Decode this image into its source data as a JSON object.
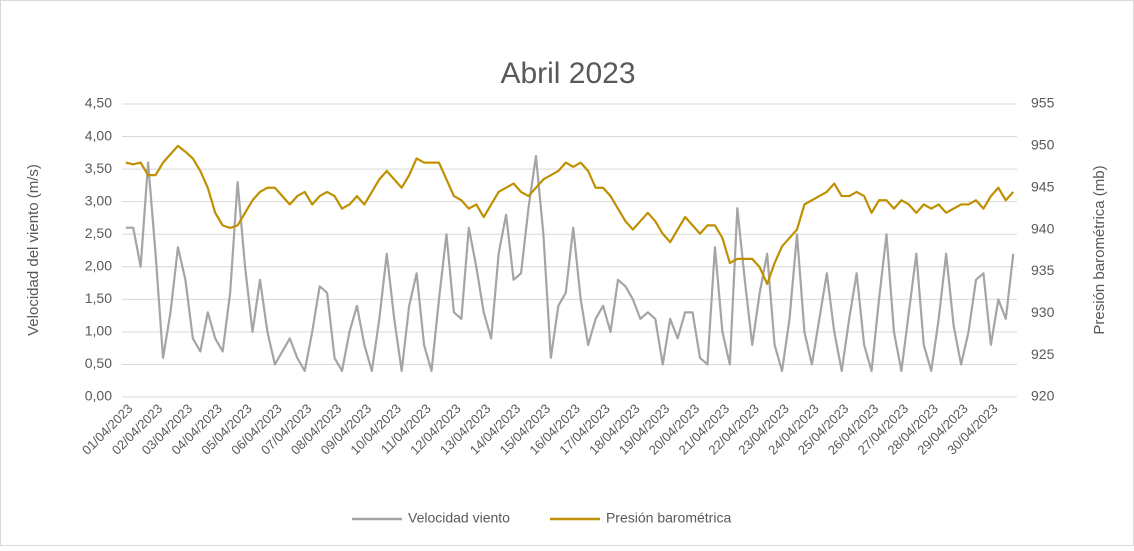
{
  "chart_data": {
    "type": "line",
    "title": "Abril 2023",
    "y_label": "Velocidad del viento (m/s)",
    "y2_label": "Presión barométrica (mb)",
    "categories": [
      "01/04/2023",
      null,
      null,
      null,
      "02/04/2023",
      null,
      null,
      null,
      "03/04/2023",
      null,
      null,
      null,
      "04/04/2023",
      null,
      null,
      null,
      "05/04/2023",
      null,
      null,
      null,
      "06/04/2023",
      null,
      null,
      null,
      "07/04/2023",
      null,
      null,
      null,
      "08/04/2023",
      null,
      null,
      null,
      "09/04/2023",
      null,
      null,
      null,
      "10/04/2023",
      null,
      null,
      null,
      "11/04/2023",
      null,
      null,
      null,
      "12/04/2023",
      null,
      null,
      null,
      "13/04/2023",
      null,
      null,
      null,
      "14/04/2023",
      null,
      null,
      null,
      "15/04/2023",
      null,
      null,
      null,
      "16/04/2023",
      null,
      null,
      null,
      "17/04/2023",
      null,
      null,
      null,
      "18/04/2023",
      null,
      null,
      null,
      "19/04/2023",
      null,
      null,
      null,
      "20/04/2023",
      null,
      null,
      null,
      "21/04/2023",
      null,
      null,
      null,
      "22/04/2023",
      null,
      null,
      null,
      "23/04/2023",
      null,
      null,
      null,
      "24/04/2023",
      null,
      null,
      null,
      "25/04/2023",
      null,
      null,
      null,
      "26/04/2023",
      null,
      null,
      null,
      "27/04/2023",
      null,
      null,
      null,
      "28/04/2023",
      null,
      null,
      null,
      "29/04/2023",
      null,
      null,
      null,
      "30/04/2023",
      null,
      null,
      null
    ],
    "series": [
      {
        "name": "Velocidad viento",
        "color": "#a5a5a5",
        "values": [
          2.6,
          2.6,
          2.0,
          3.6,
          2.2,
          0.6,
          1.3,
          2.3,
          1.8,
          0.9,
          0.7,
          1.3,
          0.9,
          0.7,
          1.6,
          3.3,
          2.0,
          1.0,
          1.8,
          1.0,
          0.5,
          0.7,
          0.9,
          0.6,
          0.4,
          1.0,
          1.7,
          1.6,
          0.6,
          0.4,
          1.0,
          1.4,
          0.8,
          0.4,
          1.2,
          2.2,
          1.2,
          0.4,
          1.4,
          1.9,
          0.8,
          0.4,
          1.5,
          2.5,
          1.3,
          1.2,
          2.6,
          2.0,
          1.3,
          0.9,
          2.2,
          2.8,
          1.8,
          1.9,
          2.9,
          3.7,
          2.5,
          0.6,
          1.4,
          1.6,
          2.6,
          1.5,
          0.8,
          1.2,
          1.4,
          1.0,
          1.8,
          1.7,
          1.5,
          1.2,
          1.3,
          1.2,
          0.5,
          1.2,
          0.9,
          1.3,
          1.3,
          0.6,
          0.5,
          2.3,
          1.0,
          0.5,
          2.9,
          1.8,
          0.8,
          1.6,
          2.2,
          0.8,
          0.4,
          1.2,
          2.5,
          1.0,
          0.5,
          1.2,
          1.9,
          1.0,
          0.4,
          1.2,
          1.9,
          0.8,
          0.4,
          1.5,
          2.5,
          1.0,
          0.4,
          1.3,
          2.2,
          0.8,
          0.4,
          1.2,
          2.2,
          1.1,
          0.5,
          1.0,
          1.8,
          1.9,
          0.8,
          1.5,
          1.2,
          2.2
        ]
      },
      {
        "name": "Presión barométrica",
        "color": "#bf9000",
        "axis": "y2",
        "values": [
          948,
          947.8,
          948,
          946.5,
          946.5,
          948,
          949,
          950,
          949.3,
          948.5,
          947,
          945,
          942,
          940.5,
          940.2,
          940.5,
          942,
          943.5,
          944.5,
          945,
          945,
          944,
          943,
          944,
          944.5,
          943,
          944,
          944.5,
          944,
          942.5,
          943,
          944,
          943,
          944.5,
          946,
          947,
          946,
          945,
          946.5,
          948.5,
          948,
          948,
          948,
          946,
          944,
          943.5,
          942.5,
          943,
          941.5,
          943,
          944.5,
          945,
          945.5,
          944.5,
          944,
          945,
          946,
          946.5,
          947,
          948,
          947.5,
          948,
          947,
          945,
          945,
          944,
          942.5,
          941,
          940,
          941,
          942,
          941,
          939.5,
          938.5,
          940,
          941.5,
          940.5,
          939.5,
          940.5,
          940.5,
          939,
          936,
          936.5,
          936.5,
          936.5,
          935.5,
          933.5,
          936,
          938,
          939,
          940,
          943,
          943.5,
          944,
          944.5,
          945.5,
          944,
          944,
          944.5,
          944,
          942,
          943.5,
          943.5,
          942.5,
          943.5,
          943,
          942,
          943,
          942.5,
          943,
          942,
          942.5,
          943,
          943,
          943.5,
          942.5,
          944,
          945,
          943.5,
          944.5
        ]
      }
    ],
    "ylim": [
      0,
      4.5
    ],
    "yticks": [
      {
        "value": 0,
        "label": "0,00"
      },
      {
        "value": 0.5,
        "label": "0,50"
      },
      {
        "value": 1,
        "label": "1,00"
      },
      {
        "value": 1.5,
        "label": "1,50"
      },
      {
        "value": 2,
        "label": "2,00"
      },
      {
        "value": 2.5,
        "label": "2,50"
      },
      {
        "value": 3,
        "label": "3,00"
      },
      {
        "value": 3.5,
        "label": "3,50"
      },
      {
        "value": 4,
        "label": "4,00"
      },
      {
        "value": 4.5,
        "label": "4,50"
      }
    ],
    "y2lim": [
      920,
      955
    ],
    "y2ticks": [
      920,
      925,
      930,
      935,
      940,
      945,
      950,
      955
    ],
    "grid": true,
    "legend": "bottom"
  }
}
